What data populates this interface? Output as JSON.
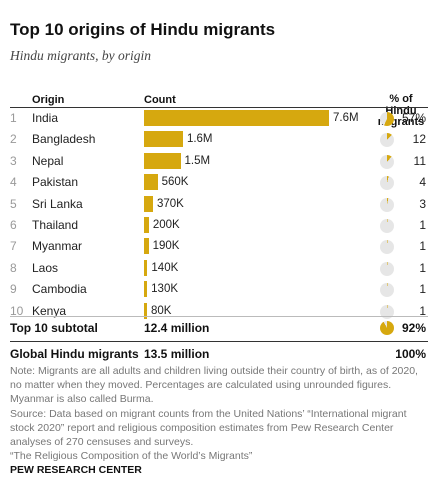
{
  "title": "Top 10 origins of Hindu migrants",
  "subtitle": "Hindu migrants, by origin",
  "headers": {
    "origin": "Origin",
    "count": "Count",
    "pct_line1": "% of",
    "pct_line2": "Hindu",
    "pct_line3": "migrants"
  },
  "colors": {
    "bar": "#d6a80f",
    "pie_fill": "#d6a80f",
    "pie_empty": "#e6e6e6"
  },
  "chart_data": {
    "type": "bar",
    "orientation": "horizontal",
    "categories": [
      "India",
      "Bangladesh",
      "Nepal",
      "Pakistan",
      "Sri Lanka",
      "Thailand",
      "Myanmar",
      "Laos",
      "Cambodia",
      "Kenya"
    ],
    "ranks": [
      "1",
      "2",
      "3",
      "4",
      "5",
      "6",
      "7",
      "8",
      "9",
      "10"
    ],
    "values": [
      7600000,
      1600000,
      1500000,
      560000,
      370000,
      200000,
      190000,
      140000,
      130000,
      80000
    ],
    "value_labels": [
      "7.6M",
      "1.6M",
      "1.5M",
      "560K",
      "370K",
      "200K",
      "190K",
      "140K",
      "130K",
      "80K"
    ],
    "percent_of_hindu_migrants": [
      57,
      12,
      11,
      4,
      3,
      1,
      1,
      1,
      1,
      1
    ],
    "percent_labels": [
      "57%",
      "12",
      "11",
      "4",
      "3",
      "1",
      "1",
      "1",
      "1",
      "1"
    ]
  },
  "subtotal": {
    "label": "Top 10 subtotal",
    "count": "12.4 million",
    "percent": "92%",
    "percent_value": 92
  },
  "global": {
    "label": "Global Hindu migrants",
    "count": "13.5 million",
    "percent": "100%"
  },
  "notes": {
    "note": "Note: Migrants are all adults and children living outside their country of birth, as of 2020, no matter when they moved. Percentages are calculated using unrounded figures. Myanmar is also called Burma.",
    "source": "Source: Data based on migrant counts from the United Nations’ “International migrant stock 2020” report and religious composition estimates from Pew Research Center analyses of 270 censuses and surveys.",
    "report": "“The Religious Composition of the World’s Migrants”"
  },
  "brand": "PEW RESEARCH CENTER"
}
